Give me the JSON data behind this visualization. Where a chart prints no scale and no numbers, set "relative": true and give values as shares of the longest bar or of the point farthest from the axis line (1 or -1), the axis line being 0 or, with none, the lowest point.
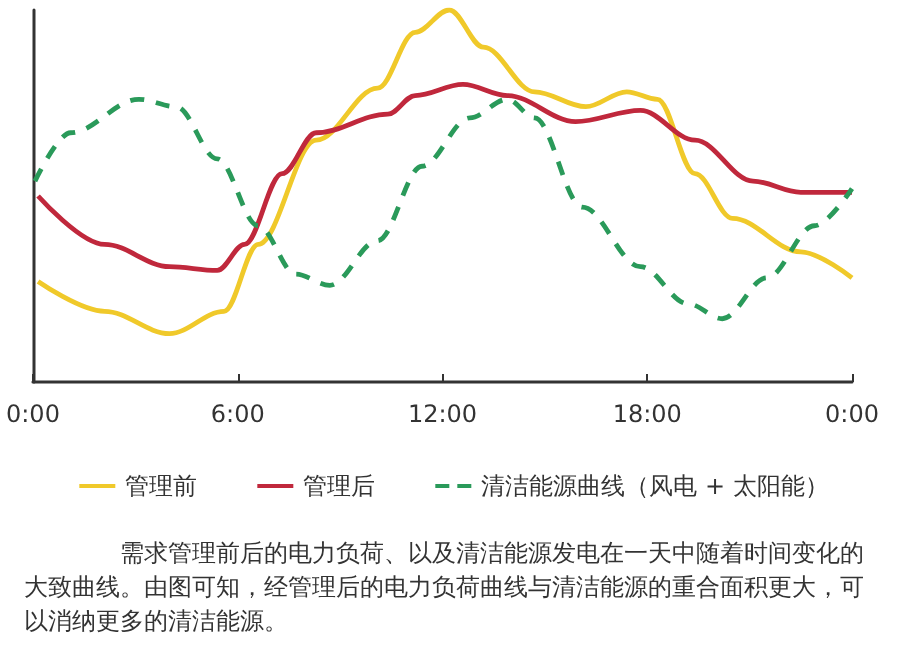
{
  "chart_data": {
    "type": "line",
    "relative": true,
    "xlim": [
      0,
      24
    ],
    "xticks": [
      {
        "value": 0,
        "label": "0:00"
      },
      {
        "value": 6,
        "label": "6:00"
      },
      {
        "value": 12,
        "label": "12:00"
      },
      {
        "value": 18,
        "label": "18:00"
      },
      {
        "value": 24,
        "label": "0:00"
      }
    ],
    "legend": "bottom",
    "marker": "none",
    "grid": false,
    "series": [
      {
        "name": "管理前",
        "color": "#f0c92a",
        "line_style": "solid",
        "x": [
          0.15,
          2.1,
          4.0,
          5.6,
          6.6,
          8.3,
          10.1,
          11.2,
          12.2,
          13.2,
          14.7,
          16.2,
          17.4,
          18.3,
          19.4,
          20.5,
          22.5,
          24
        ],
        "values": [
          0.27,
          0.19,
          0.13,
          0.19,
          0.37,
          0.65,
          0.79,
          0.94,
          1.0,
          0.9,
          0.78,
          0.74,
          0.78,
          0.76,
          0.56,
          0.44,
          0.35,
          0.28
        ]
      },
      {
        "name": "管理后",
        "color": "#c0283c",
        "line_style": "solid",
        "x": [
          0.15,
          2.1,
          4.0,
          5.4,
          6.2,
          7.3,
          8.3,
          10.4,
          11.2,
          12.6,
          13.9,
          15.9,
          17.8,
          19.4,
          21.1,
          22.5,
          24
        ],
        "values": [
          0.5,
          0.37,
          0.31,
          0.3,
          0.37,
          0.56,
          0.67,
          0.72,
          0.77,
          0.8,
          0.77,
          0.7,
          0.73,
          0.65,
          0.54,
          0.51,
          0.51
        ]
      },
      {
        "name": "清洁能源曲线（风电 + 太阳能）",
        "color": "#2a9a5a",
        "line_style": "dashed",
        "x": [
          0.06,
          1.1,
          3.1,
          4.2,
          5.4,
          6.6,
          7.7,
          8.7,
          10.1,
          11.4,
          12.8,
          13.9,
          14.7,
          16.1,
          17.8,
          19.2,
          20.2,
          21.5,
          22.9,
          24
        ],
        "values": [
          0.54,
          0.67,
          0.76,
          0.74,
          0.6,
          0.42,
          0.29,
          0.26,
          0.38,
          0.58,
          0.71,
          0.76,
          0.71,
          0.47,
          0.31,
          0.21,
          0.17,
          0.28,
          0.42,
          0.52
        ]
      }
    ],
    "annotations": [
      "需求管理前后的电力负荷、以及清洁能源发电在一天中随着时间变化的大致曲线。由图可知，经管理后的电力负荷曲线与清洁能源的重合面积更大，可以消纳更多的清洁能源。"
    ]
  }
}
